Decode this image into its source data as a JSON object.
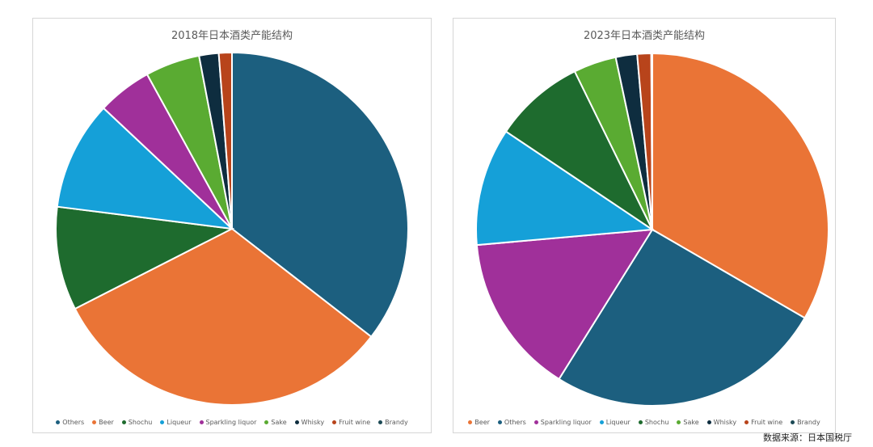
{
  "source": "数据来源：日本国税厅",
  "chart_data": [
    {
      "type": "pie",
      "title": "2018年日本酒类产能结构",
      "legend_position": "bottom",
      "slices": [
        {
          "label": "Others",
          "value": 35.5,
          "color": "#1c5f7f"
        },
        {
          "label": "Beer",
          "value": 32.0,
          "color": "#ea7436"
        },
        {
          "label": "Shochu",
          "value": 9.5,
          "color": "#1e6b2e"
        },
        {
          "label": "Liqueur",
          "value": 10.0,
          "color": "#15a0d8"
        },
        {
          "label": "Sparkling liquor",
          "value": 5.0,
          "color": "#a0309a"
        },
        {
          "label": "Sake",
          "value": 5.0,
          "color": "#5aab32"
        },
        {
          "label": "Whisky",
          "value": 1.8,
          "color": "#0e2d3f"
        },
        {
          "label": "Fruit wine",
          "value": 1.2,
          "color": "#b8441b"
        },
        {
          "label": "Brandy",
          "value": 0.0,
          "color": "#1c4a55"
        }
      ]
    },
    {
      "type": "pie",
      "title": "2023年日本酒类产能结构",
      "legend_position": "bottom",
      "slices": [
        {
          "label": "Beer",
          "value": 34.0,
          "color": "#ea7436"
        },
        {
          "label": "Others",
          "value": 26.0,
          "color": "#1c5f7f"
        },
        {
          "label": "Sparkling liquor",
          "value": 15.0,
          "color": "#a0309a"
        },
        {
          "label": "Liqueur",
          "value": 11.0,
          "color": "#15a0d8"
        },
        {
          "label": "Shochu",
          "value": 8.5,
          "color": "#1e6b2e"
        },
        {
          "label": "Sake",
          "value": 4.0,
          "color": "#5aab32"
        },
        {
          "label": "Whisky",
          "value": 2.0,
          "color": "#0e2d3f"
        },
        {
          "label": "Fruit wine",
          "value": 1.3,
          "color": "#b8441b"
        },
        {
          "label": "Brandy",
          "value": 0.1,
          "color": "#1c4a55"
        }
      ]
    }
  ]
}
